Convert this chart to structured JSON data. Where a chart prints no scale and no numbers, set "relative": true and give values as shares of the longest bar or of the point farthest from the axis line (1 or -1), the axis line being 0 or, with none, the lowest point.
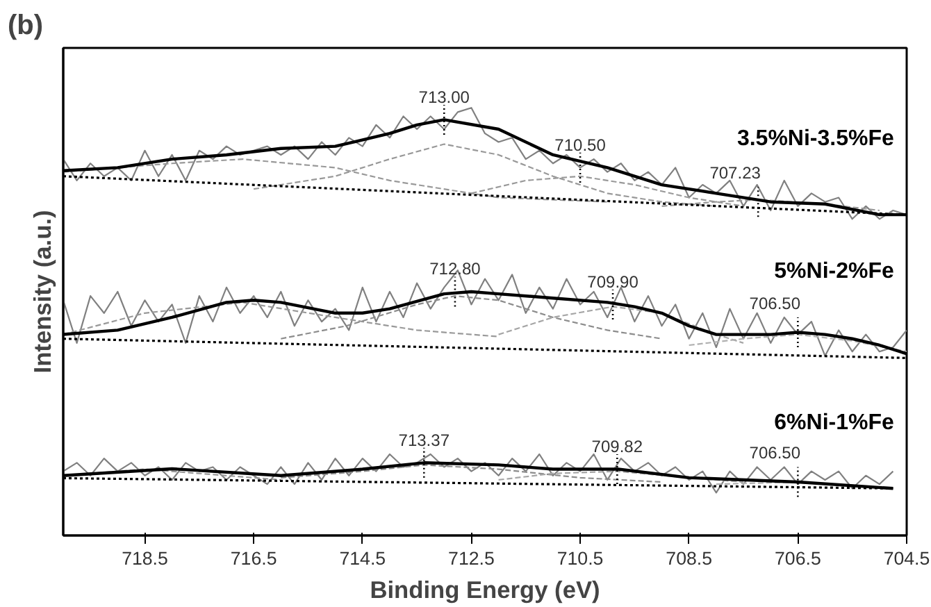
{
  "chart_data": {
    "type": "line",
    "title": "(b)",
    "xlabel": "Binding Energy (eV)",
    "ylabel": "Intensity (a.u.)",
    "relative": true,
    "xlim": [
      720.0,
      704.5
    ],
    "xticks": [
      718.5,
      716.5,
      714.5,
      712.5,
      710.5,
      708.5,
      706.5,
      704.5
    ],
    "grid": false,
    "tick_labels": "x",
    "series": [
      {
        "color": "#808080",
        "line_style": "solid",
        "x": [
          720,
          719.75,
          719.5,
          719.25,
          719,
          718.75,
          718.5,
          718.25,
          718,
          717.75,
          717.5,
          717.25,
          717,
          716.75,
          716.5,
          716.25,
          716,
          715.75,
          715.5,
          715.25,
          715,
          714.75,
          714.5,
          714.25,
          714,
          713.75,
          713.5,
          713.25,
          713,
          712.75,
          712.5,
          712.25,
          712,
          711.75,
          711.5,
          711.25,
          711,
          710.75,
          710.5,
          710.25,
          710,
          709.75,
          709.5,
          709.25,
          709,
          708.75,
          708.5,
          708.25,
          708,
          707.75,
          707.5,
          707.25,
          707,
          706.75,
          706.5,
          706.25,
          706,
          705.75,
          705.5,
          705.25,
          705,
          704.75,
          704.5
        ],
        "values": [
          0.88,
          0.83,
          0.87,
          0.84,
          0.86,
          0.83,
          0.9,
          0.84,
          0.89,
          0.83,
          0.9,
          0.88,
          0.91,
          0.89,
          0.9,
          0.91,
          0.89,
          0.91,
          0.88,
          0.92,
          0.89,
          0.93,
          0.91,
          0.96,
          0.93,
          0.98,
          0.95,
          0.98,
          0.95,
          0.99,
          1.0,
          0.94,
          0.92,
          0.93,
          0.88,
          0.9,
          0.87,
          0.89,
          0.86,
          0.88,
          0.85,
          0.87,
          0.83,
          0.85,
          0.82,
          0.86,
          0.79,
          0.82,
          0.8,
          0.83,
          0.77,
          0.82,
          0.76,
          0.83,
          0.77,
          0.8,
          0.78,
          0.79,
          0.74,
          0.77,
          0.74,
          0.76,
          0.75
        ]
      },
      {
        "color": "#999999",
        "line_style": "dashed",
        "x": [
          720,
          718,
          716.7,
          715,
          714,
          712,
          710
        ],
        "values": [
          0.85,
          0.87,
          0.88,
          0.86,
          0.83,
          0.79,
          0.78
        ]
      },
      {
        "color": "#999999",
        "line_style": "dashed",
        "x": [
          716.5,
          715,
          714,
          713,
          712,
          711,
          710,
          709,
          708
        ],
        "values": [
          0.81,
          0.84,
          0.88,
          0.915,
          0.89,
          0.84,
          0.8,
          0.78,
          0.77
        ]
      },
      {
        "color": "#999999",
        "line_style": "dashed",
        "x": [
          712.5,
          711.5,
          710.5,
          709.5,
          708.5,
          707.5
        ],
        "values": [
          0.8,
          0.83,
          0.84,
          0.82,
          0.79,
          0.77
        ]
      },
      {
        "color": "#999999",
        "line_style": "dashed",
        "x": [
          709,
          708,
          707.23,
          706,
          705
        ],
        "values": [
          0.77,
          0.78,
          0.785,
          0.775,
          0.76
        ]
      },
      {
        "color": "#000000",
        "line_style": "dotted",
        "x": [
          720,
          704.5
        ],
        "values": [
          0.84,
          0.75
        ]
      },
      {
        "name": "3.5%Ni-3.5%Fe",
        "color": "#000000",
        "line_style": "solid",
        "x": [
          720,
          719,
          718,
          717,
          716,
          715,
          714,
          713.5,
          713,
          712,
          711,
          710,
          709,
          708,
          707,
          706,
          705,
          704.5
        ],
        "values": [
          0.853,
          0.86,
          0.88,
          0.89,
          0.905,
          0.91,
          0.94,
          0.96,
          0.972,
          0.95,
          0.89,
          0.86,
          0.82,
          0.8,
          0.78,
          0.775,
          0.75,
          0.75
        ]
      },
      {
        "color": "#808080",
        "line_style": "solid",
        "x": [
          720,
          719.75,
          719.5,
          719.25,
          719,
          718.75,
          718.5,
          718.25,
          718,
          717.75,
          717.5,
          717.25,
          717,
          716.75,
          716.5,
          716.25,
          716,
          715.75,
          715.5,
          715.25,
          715,
          714.75,
          714.5,
          714.25,
          714,
          713.75,
          713.5,
          713.25,
          713,
          712.75,
          712.5,
          712.25,
          712,
          711.75,
          711.5,
          711.25,
          711,
          710.75,
          710.5,
          710.25,
          710,
          709.75,
          709.5,
          709.25,
          709,
          708.75,
          708.5,
          708.25,
          708,
          707.75,
          707.5,
          707.25,
          707,
          706.75,
          706.5,
          706.25,
          706,
          705.75,
          705.5,
          705.25,
          705,
          704.75,
          704.5
        ],
        "values": [
          0.55,
          0.45,
          0.56,
          0.52,
          0.57,
          0.49,
          0.55,
          0.5,
          0.54,
          0.45,
          0.56,
          0.5,
          0.58,
          0.52,
          0.56,
          0.51,
          0.57,
          0.49,
          0.55,
          0.5,
          0.53,
          0.48,
          0.58,
          0.5,
          0.57,
          0.51,
          0.59,
          0.53,
          0.58,
          0.62,
          0.54,
          0.6,
          0.55,
          0.61,
          0.52,
          0.58,
          0.53,
          0.6,
          0.54,
          0.57,
          0.51,
          0.58,
          0.5,
          0.56,
          0.49,
          0.54,
          0.46,
          0.52,
          0.44,
          0.53,
          0.46,
          0.52,
          0.45,
          0.51,
          0.47,
          0.5,
          0.42,
          0.48,
          0.43,
          0.47,
          0.43,
          0.44,
          0.48
        ]
      },
      {
        "color": "#999999",
        "line_style": "dashed",
        "x": [
          720,
          718.5,
          716.7,
          715,
          713.5,
          712
        ],
        "values": [
          0.47,
          0.52,
          0.545,
          0.51,
          0.48,
          0.465
        ]
      },
      {
        "color": "#8c8c8c",
        "line_style": "dashed",
        "x": [
          716,
          714.8,
          713.5,
          712.8,
          712,
          711,
          710,
          709
        ],
        "values": [
          0.46,
          0.49,
          0.54,
          0.56,
          0.55,
          0.51,
          0.48,
          0.46
        ]
      },
      {
        "color": "#a6a6a6",
        "line_style": "dashed",
        "x": [
          712,
          711,
          709.9,
          709,
          708,
          707.5
        ],
        "values": [
          0.47,
          0.51,
          0.535,
          0.52,
          0.47,
          0.45
        ]
      },
      {
        "color": "#b0b0b0",
        "line_style": "dashed",
        "x": [
          708.5,
          707.5,
          706.5,
          705.5,
          704.5
        ],
        "values": [
          0.445,
          0.46,
          0.47,
          0.455,
          0.43
        ]
      },
      {
        "color": "#000000",
        "line_style": "dotted",
        "x": [
          720,
          704.5
        ],
        "values": [
          0.46,
          0.415
        ]
      },
      {
        "name": "5%Ni-2%Fe",
        "color": "#000000",
        "line_style": "solid",
        "x": [
          720,
          719,
          718,
          717,
          716.5,
          716,
          715,
          714.5,
          714,
          713,
          712.5,
          712,
          711,
          710,
          709.5,
          709,
          708.5,
          708,
          707,
          706.5,
          706,
          705.5,
          705,
          704.5
        ],
        "values": [
          0.47,
          0.48,
          0.51,
          0.545,
          0.55,
          0.545,
          0.52,
          0.52,
          0.53,
          0.565,
          0.57,
          0.565,
          0.555,
          0.545,
          0.535,
          0.52,
          0.49,
          0.47,
          0.47,
          0.475,
          0.47,
          0.46,
          0.445,
          0.425
        ]
      },
      {
        "color": "#808080",
        "line_style": "solid",
        "x": [
          720,
          719.75,
          719.5,
          719.25,
          719,
          718.75,
          718.5,
          718.25,
          718,
          717.75,
          717.5,
          717.25,
          717,
          716.75,
          716.5,
          716.25,
          716,
          715.75,
          715.5,
          715.25,
          715,
          714.75,
          714.5,
          714.25,
          714,
          713.75,
          713.5,
          713.25,
          713,
          712.75,
          712.5,
          712.25,
          712,
          711.75,
          711.5,
          711.25,
          711,
          710.75,
          710.5,
          710.25,
          710,
          709.75,
          709.5,
          709.25,
          709,
          708.75,
          708.5,
          708.25,
          708,
          707.75,
          707.5,
          707.25,
          707,
          706.75,
          706.5,
          706.25,
          706,
          705.75,
          705.5,
          705.25,
          705,
          704.75
        ],
        "values": [
          0.15,
          0.17,
          0.14,
          0.18,
          0.15,
          0.17,
          0.14,
          0.16,
          0.13,
          0.17,
          0.15,
          0.16,
          0.13,
          0.16,
          0.14,
          0.12,
          0.16,
          0.12,
          0.17,
          0.13,
          0.18,
          0.14,
          0.18,
          0.15,
          0.19,
          0.16,
          0.17,
          0.19,
          0.16,
          0.18,
          0.15,
          0.17,
          0.14,
          0.18,
          0.15,
          0.19,
          0.14,
          0.17,
          0.15,
          0.19,
          0.13,
          0.18,
          0.15,
          0.17,
          0.14,
          0.16,
          0.13,
          0.15,
          0.1,
          0.15,
          0.12,
          0.16,
          0.13,
          0.16,
          0.12,
          0.15,
          0.13,
          0.15,
          0.11,
          0.14,
          0.12,
          0.15
        ]
      },
      {
        "color": "#999999",
        "line_style": "dashed",
        "x": [
          720,
          718.5,
          717,
          716
        ],
        "values": [
          0.14,
          0.155,
          0.14,
          0.13
        ]
      },
      {
        "color": "#8c8c8c",
        "line_style": "dashed",
        "x": [
          716,
          714.5,
          713.37,
          712,
          710.5,
          709
        ],
        "values": [
          0.135,
          0.15,
          0.165,
          0.155,
          0.135,
          0.125
        ]
      },
      {
        "color": "#a6a6a6",
        "line_style": "dashed",
        "x": [
          712,
          711,
          709.82,
          708.5,
          707.5
        ],
        "values": [
          0.13,
          0.145,
          0.15,
          0.135,
          0.125
        ]
      },
      {
        "color": "#b0b0b0",
        "line_style": "dashed",
        "x": [
          708,
          706.5
        ],
        "values": [
          0.12,
          0.125
        ]
      },
      {
        "color": "#000000",
        "line_style": "dotted",
        "x": [
          720,
          704.75
        ],
        "values": [
          0.134,
          0.11
        ]
      },
      {
        "name": "6%Ni-1%Fe",
        "color": "#000000",
        "line_style": "solid",
        "x": [
          720,
          718,
          716,
          714.5,
          713.37,
          712,
          711,
          709.8,
          708.5,
          706.5,
          704.75
        ],
        "values": [
          0.14,
          0.156,
          0.14,
          0.155,
          0.17,
          0.165,
          0.155,
          0.155,
          0.135,
          0.125,
          0.11
        ]
      }
    ],
    "annotations": [
      {
        "text": "713.00",
        "x": 713.0,
        "y": 0.972
      },
      {
        "text": "710.50",
        "x": 710.5,
        "y": 0.86
      },
      {
        "text": "707.23",
        "x": 707.23,
        "y": 0.78
      },
      {
        "text": "712.80",
        "x": 712.8,
        "y": 0.57
      },
      {
        "text": "709.90",
        "x": 709.9,
        "y": 0.54
      },
      {
        "text": "706.50",
        "x": 706.5,
        "y": 0.475
      },
      {
        "text": "713.37",
        "x": 713.37,
        "y": 0.17
      },
      {
        "text": "709.82",
        "x": 709.82,
        "y": 0.155
      },
      {
        "text": "706.50",
        "x": 706.5,
        "y": 0.125
      }
    ]
  }
}
